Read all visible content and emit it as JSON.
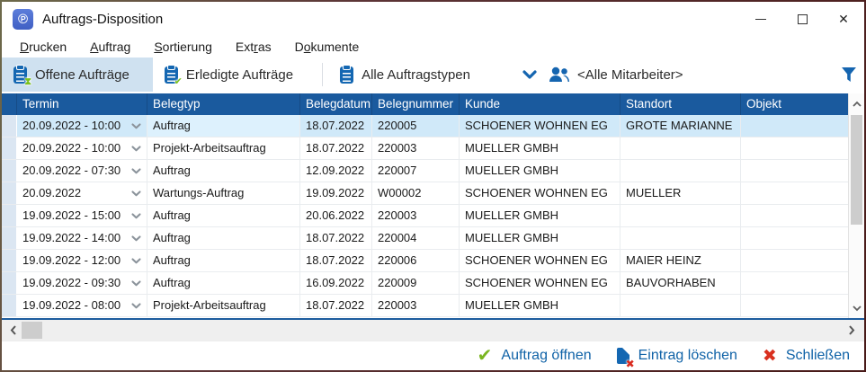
{
  "window": {
    "title": "Auftrags-Disposition",
    "controls": {
      "minimize": "minimize",
      "maximize": "maximize",
      "close": "✕"
    }
  },
  "menu": {
    "items": [
      {
        "label": "Drucken",
        "accel": "D"
      },
      {
        "label": "Auftrag",
        "accel": "A"
      },
      {
        "label": "Sortierung",
        "accel": "S"
      },
      {
        "label": "Extras",
        "accel": "r"
      },
      {
        "label": "Dokumente",
        "accel": "o"
      }
    ]
  },
  "toolbar": {
    "tabs": [
      {
        "label": "Offene Aufträge",
        "icon": "clipboard-pending-icon",
        "active": true
      },
      {
        "label": "Erledigte Aufträge",
        "icon": "clipboard-done-icon",
        "active": false
      },
      {
        "label": "Alle Auftragstypen",
        "icon": "clipboard-icon",
        "active": false
      }
    ],
    "employee_filter": {
      "label": "<Alle Mitarbeiter>",
      "icon": "employees-icon"
    },
    "filter_icon": "funnel-icon"
  },
  "table": {
    "columns": [
      "Termin",
      "Belegtyp",
      "Belegdatum",
      "Belegnummer",
      "Kunde",
      "Standort",
      "Objekt"
    ],
    "selected_row_index": 0,
    "rows": [
      [
        "20.09.2022 - 10:00",
        "Auftrag",
        "18.07.2022",
        "220005",
        "SCHOENER WOHNEN EG",
        "GROTE MARIANNE",
        ""
      ],
      [
        "20.09.2022 - 10:00",
        "Projekt-Arbeitsauftrag",
        "18.07.2022",
        "220003",
        "MUELLER GMBH",
        "",
        ""
      ],
      [
        "20.09.2022 - 07:30",
        "Auftrag",
        "12.09.2022",
        "220007",
        "MUELLER GMBH",
        "",
        ""
      ],
      [
        "20.09.2022",
        "Wartungs-Auftrag",
        "19.09.2022",
        "W00002",
        "SCHOENER WOHNEN EG",
        "MUELLER",
        ""
      ],
      [
        "19.09.2022 - 15:00",
        "Auftrag",
        "20.06.2022",
        "220003",
        "MUELLER GMBH",
        "",
        ""
      ],
      [
        "19.09.2022 - 14:00",
        "Auftrag",
        "18.07.2022",
        "220004",
        "MUELLER GMBH",
        "",
        ""
      ],
      [
        "19.09.2022 - 12:00",
        "Auftrag",
        "18.07.2022",
        "220006",
        "SCHOENER WOHNEN EG",
        "MAIER HEINZ",
        ""
      ],
      [
        "19.09.2022 - 09:30",
        "Auftrag",
        "16.09.2022",
        "220009",
        "SCHOENER WOHNEN EG",
        "BAUVORHABEN",
        ""
      ],
      [
        "19.09.2022 - 08:00",
        "Projekt-Arbeitsauftrag",
        "18.07.2022",
        "220003",
        "MUELLER GMBH",
        "",
        ""
      ]
    ]
  },
  "footer": {
    "open_label": "Auftrag öffnen",
    "delete_label": "Eintrag löschen",
    "close_label": "Schließen"
  },
  "colors": {
    "header_blue": "#1a5a9e",
    "accent_blue": "#1467b2",
    "active_tab": "#cfe1f0",
    "selected_row": "#d0e9f9",
    "green_check": "#7ab520",
    "red_x": "#d9301f"
  }
}
